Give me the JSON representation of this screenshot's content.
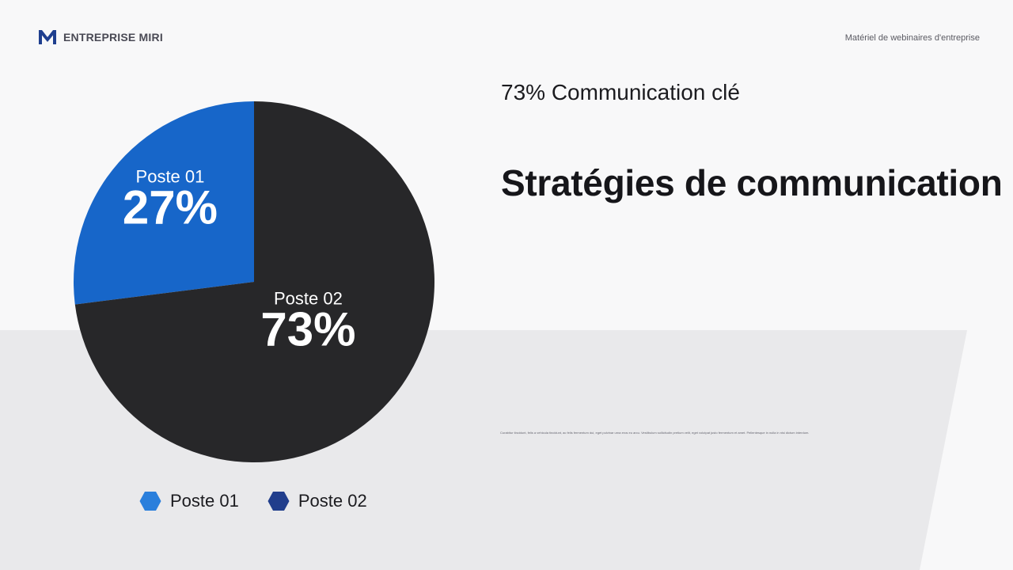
{
  "header": {
    "brand": "ENTREPRISE MIRI",
    "caption": "Matériel de webinaires d'entreprise"
  },
  "kicker": "73% Communication clé",
  "headline": "Stratégies de communication",
  "body_text": "Curabitur tincidunt, felis a vehicula tincidunt, ac felis fermentum dui, eget pulvinar urna eros eu arcu. Vestibulum sollicitudin pretium velit, eget volutpat justo fermentum et amet. Pellentesque in nulla in nisi dictum interdum.",
  "colors": {
    "brand": "#1f3f8f",
    "slice_1": "#1766c9",
    "slice_2": "#272729",
    "legend_1": "#2a7fdc",
    "legend_2": "#213e8c",
    "background": "#f8f8f9",
    "band": "#e9e9eb"
  },
  "chart_data": {
    "type": "pie",
    "categories": [
      "Poste 01",
      "Poste 02"
    ],
    "values": [
      27,
      73
    ],
    "value_labels": [
      "27%",
      "73%"
    ],
    "legend": {
      "position": "bottom",
      "entries": [
        "Poste 01",
        "Poste 02"
      ],
      "marker": "hexagon"
    }
  }
}
